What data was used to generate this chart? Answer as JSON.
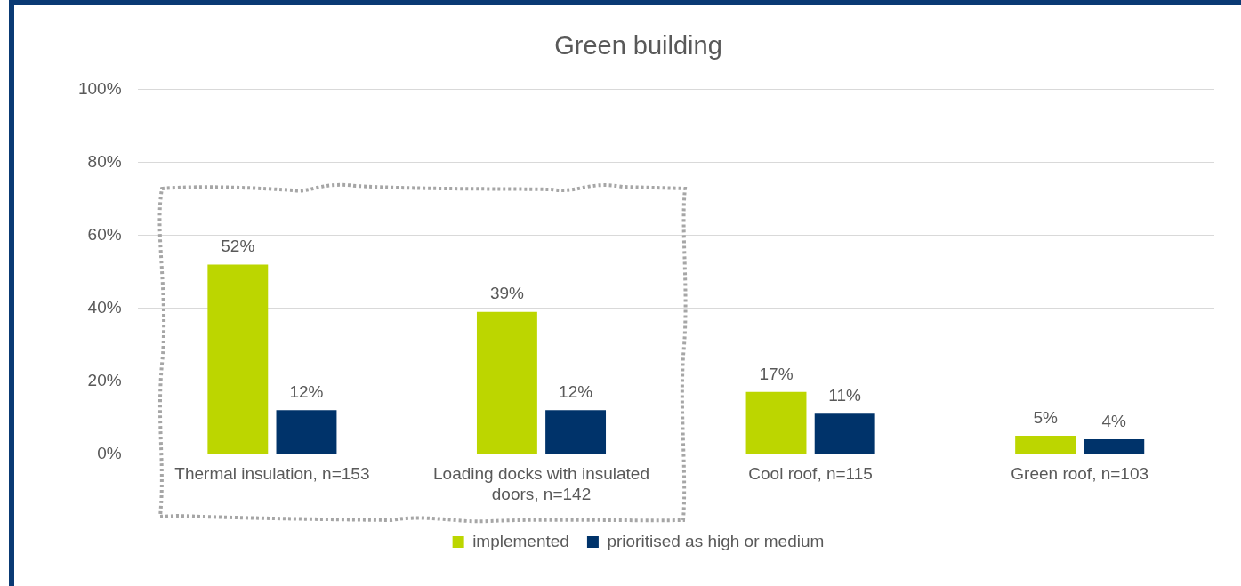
{
  "chart_data": {
    "type": "bar",
    "title": "Green building",
    "categories": [
      "Thermal insulation, n=153",
      "Loading docks with insulated doors, n=142",
      "Cool roof, n=115",
      "Green roof, n=103"
    ],
    "series": [
      {
        "name": "implemented",
        "color": "#bcd600",
        "values": [
          52,
          39,
          17,
          5
        ],
        "value_labels": [
          "52%",
          "39%",
          "17%",
          "5%"
        ]
      },
      {
        "name": "prioritised as high or medium",
        "color": "#00336a",
        "values": [
          12,
          12,
          11,
          4
        ],
        "value_labels": [
          "12%",
          "12%",
          "11%",
          "4%"
        ]
      }
    ],
    "ylim": [
      0,
      100
    ],
    "yticks": [
      {
        "value": 0,
        "label": "0%"
      },
      {
        "value": 20,
        "label": "20%"
      },
      {
        "value": 40,
        "label": "40%"
      },
      {
        "value": 60,
        "label": "60%"
      },
      {
        "value": 80,
        "label": "80%"
      },
      {
        "value": 100,
        "label": "100%"
      }
    ],
    "grid": "y",
    "legend": "bottom"
  }
}
